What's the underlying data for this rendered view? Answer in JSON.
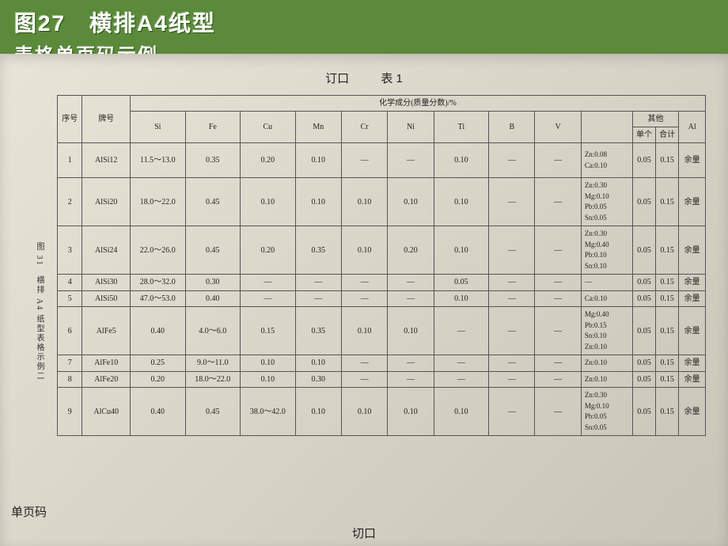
{
  "header": {
    "title": "图27　横排A4纸型",
    "subtitle": "表格单页码示例"
  },
  "labels": {
    "top_binding": "订口",
    "table_no": "表 1",
    "bottom_cut": "切口",
    "side_page": "单页码",
    "side_note": "图 31　横排 A4 纸型表格示例二"
  },
  "table": {
    "head": {
      "seq": "序号",
      "grade": "牌号",
      "comp": "化学成分(质量分数)/%",
      "other": "其他",
      "other_single": "单个",
      "other_total": "合计",
      "al": "Al",
      "elements": [
        "Si",
        "Fe",
        "Cu",
        "Mn",
        "Cr",
        "Ni",
        "Ti",
        "B",
        "V",
        ""
      ]
    },
    "rows": [
      {
        "cls": "tall",
        "seq": "1",
        "grade": "AlSi12",
        "si": "11.5～13.0",
        "fe": "0.35",
        "cu": "0.20",
        "mn": "0.10",
        "cr": "—",
        "ni": "—",
        "ti": "0.10",
        "b": "—",
        "v": "—",
        "notes": "Zn:0.08\nCa:0.10",
        "s": "0.05",
        "t": "0.15",
        "al": "余量"
      },
      {
        "cls": "vtall",
        "seq": "2",
        "grade": "AlSi20",
        "si": "18.0～22.0",
        "fe": "0.45",
        "cu": "0.10",
        "mn": "0.10",
        "cr": "0.10",
        "ni": "0.10",
        "ti": "0.10",
        "b": "—",
        "v": "—",
        "notes": "Zn:0.30\nMg:0.10\nPb:0.05\nSn:0.05",
        "s": "0.05",
        "t": "0.15",
        "al": "余量"
      },
      {
        "cls": "vtall",
        "seq": "3",
        "grade": "AlSi24",
        "si": "22.0～26.0",
        "fe": "0.45",
        "cu": "0.20",
        "mn": "0.35",
        "cr": "0.10",
        "ni": "0.20",
        "ti": "0.10",
        "b": "—",
        "v": "—",
        "notes": "Zn:0.30\nMg:0.40\nPb:0.10\nSn:0.10",
        "s": "0.05",
        "t": "0.15",
        "al": "余量"
      },
      {
        "cls": "short",
        "seq": "4",
        "grade": "AlSi30",
        "si": "28.0～32.0",
        "fe": "0.30",
        "cu": "—",
        "mn": "—",
        "cr": "—",
        "ni": "—",
        "ti": "0.05",
        "b": "—",
        "v": "—",
        "notes": "—",
        "s": "0.05",
        "t": "0.15",
        "al": "余量"
      },
      {
        "cls": "short",
        "seq": "5",
        "grade": "AlSi50",
        "si": "47.0～53.0",
        "fe": "0.40",
        "cu": "—",
        "mn": "—",
        "cr": "—",
        "ni": "—",
        "ti": "0.10",
        "b": "—",
        "v": "—",
        "notes": "Ca:0.10",
        "s": "0.05",
        "t": "0.15",
        "al": "余量"
      },
      {
        "cls": "vtall",
        "seq": "6",
        "grade": "AlFe5",
        "si": "0.40",
        "fe": "4.0～6.0",
        "cu": "0.15",
        "mn": "0.35",
        "cr": "0.10",
        "ni": "0.10",
        "ti": "—",
        "b": "—",
        "v": "—",
        "notes": "Mg:0.40\nPb:0.15\nSn:0.10\nZn:0.10",
        "s": "0.05",
        "t": "0.15",
        "al": "余量"
      },
      {
        "cls": "short",
        "seq": "7",
        "grade": "AlFe10",
        "si": "0.25",
        "fe": "9.0～11.0",
        "cu": "0.10",
        "mn": "0.10",
        "cr": "—",
        "ni": "—",
        "ti": "—",
        "b": "—",
        "v": "—",
        "notes": "Zn:0.10",
        "s": "0.05",
        "t": "0.15",
        "al": "余量"
      },
      {
        "cls": "short",
        "seq": "8",
        "grade": "AlFe20",
        "si": "0.20",
        "fe": "18.0～22.0",
        "cu": "0.10",
        "mn": "0.30",
        "cr": "—",
        "ni": "—",
        "ti": "—",
        "b": "—",
        "v": "—",
        "notes": "Zn:0.10",
        "s": "0.05",
        "t": "0.15",
        "al": "余量"
      },
      {
        "cls": "vtall",
        "seq": "9",
        "grade": "AlCu40",
        "si": "0.40",
        "fe": "0.45",
        "cu": "38.0～42.0",
        "mn": "0.10",
        "cr": "0.10",
        "ni": "0.10",
        "ti": "0.10",
        "b": "—",
        "v": "—",
        "notes": "Zn:0.30\nMg:0.10\nPb:0.05\nSn:0.05",
        "s": "0.05",
        "t": "0.15",
        "al": "余量"
      }
    ]
  },
  "style": {
    "bg": "#5a8a3a",
    "page_bg": "#d8d4c8",
    "border": "#555555",
    "title_color": "#ffffff",
    "text_color": "#222222"
  }
}
